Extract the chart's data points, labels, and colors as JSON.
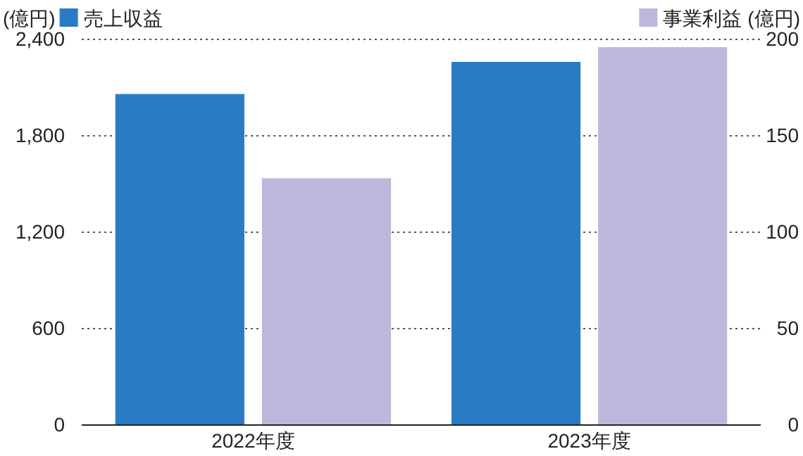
{
  "chart_data": {
    "type": "bar",
    "categories": [
      "2022年度",
      "2023年度"
    ],
    "series": [
      {
        "name": "売上収益",
        "color": "#2a7bc6",
        "values": [
          2060,
          2260
        ]
      },
      {
        "name": "事業利益",
        "color": "#bcb8dc",
        "values": [
          128,
          196
        ],
        "axis": "y2"
      }
    ],
    "ylabel": "(億円)",
    "y2label": "(億円)",
    "ylim": [
      0,
      2400
    ],
    "yticks": [
      0,
      600,
      {
        "value": 1200,
        "label": "1,200"
      },
      {
        "value": 1800,
        "label": "1,800"
      },
      {
        "value": 2400,
        "label": "2,400"
      }
    ],
    "y2lim": [
      0,
      200
    ],
    "y2ticks": [
      0,
      50,
      100,
      150,
      200
    ],
    "grid": "y",
    "legend": "top"
  }
}
